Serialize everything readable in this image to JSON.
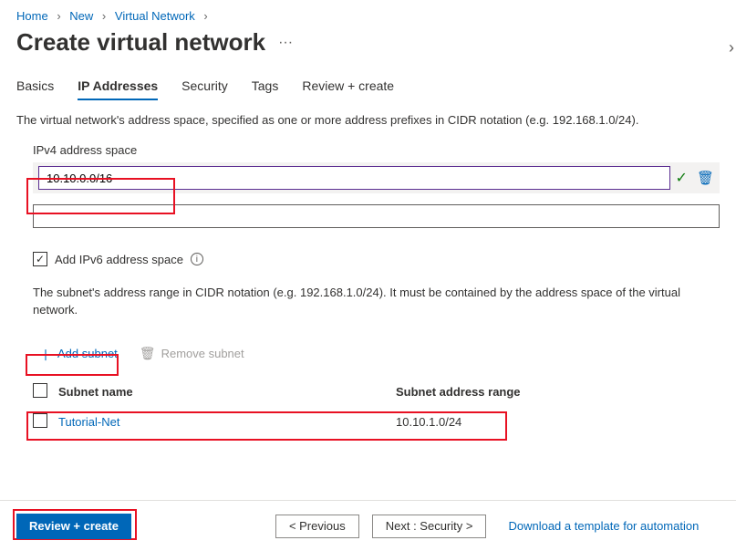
{
  "breadcrumb": {
    "items": [
      "Home",
      "New",
      "Virtual Network"
    ]
  },
  "page_title": "Create virtual network",
  "tabs": {
    "items": [
      "Basics",
      "IP Addresses",
      "Security",
      "Tags",
      "Review + create"
    ],
    "active_index": 1
  },
  "description": "The virtual network's address space, specified as one or more address prefixes in CIDR notation (e.g. 192.168.1.0/24).",
  "ipv4": {
    "label": "IPv4 address space",
    "value": "10.10.0.0/16"
  },
  "ipv6": {
    "checkbox_checked": true,
    "label": "Add IPv6 address space"
  },
  "subnet_description": "The subnet's address range in CIDR notation (e.g. 192.168.1.0/24). It must be contained by the address space of the virtual network.",
  "subnet_actions": {
    "add_label": "Add subnet",
    "remove_label": "Remove subnet"
  },
  "subnet_table": {
    "headers": {
      "name": "Subnet name",
      "range": "Subnet address range"
    },
    "rows": [
      {
        "name": "Tutorial-Net",
        "range": "10.10.1.0/24"
      }
    ]
  },
  "footer": {
    "primary": "Review + create",
    "previous": "<  Previous",
    "next": "Next : Security  >",
    "download_link": "Download a template for automation"
  },
  "colors": {
    "link": "#0067b8",
    "highlight": "#e81123",
    "text": "#323130",
    "muted": "#a19f9d",
    "valid_border": "#5b2e91",
    "check_green": "#107c10"
  }
}
